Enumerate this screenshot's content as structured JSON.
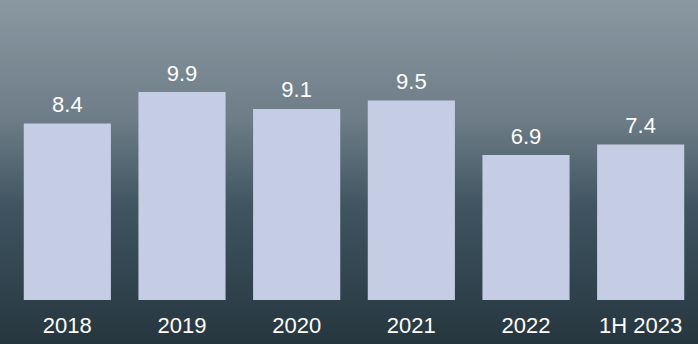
{
  "chart_data": {
    "type": "bar",
    "categories": [
      "2018",
      "2019",
      "2020",
      "2021",
      "2022",
      "1H 2023"
    ],
    "values": [
      8.4,
      9.9,
      9.1,
      9.5,
      6.9,
      7.4
    ],
    "color": "#c5cde4",
    "ylim": [
      0,
      10
    ],
    "grid": false,
    "data_labels": true,
    "tick_labels": "x"
  }
}
